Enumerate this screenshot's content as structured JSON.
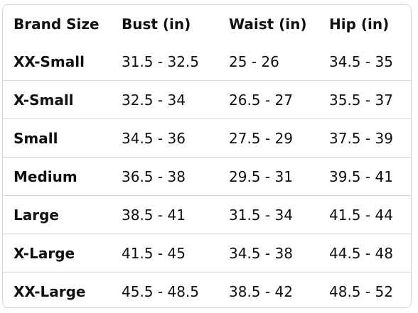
{
  "table": {
    "headers": [
      "Brand Size",
      "Bust (in)",
      "Waist (in)",
      "Hip (in)"
    ],
    "rows": [
      [
        "XX-Small",
        "31.5 - 32.5",
        "25 - 26",
        "34.5 - 35"
      ],
      [
        "X-Small",
        "32.5 - 34",
        "26.5 - 27",
        "35.5 - 37"
      ],
      [
        "Small",
        "34.5 - 36",
        "27.5 - 29",
        "37.5 - 39"
      ],
      [
        "Medium",
        "36.5 - 38",
        "29.5 - 31",
        "39.5 - 41"
      ],
      [
        "Large",
        "38.5 - 41",
        "31.5 - 34",
        "41.5 - 44"
      ],
      [
        "X-Large",
        "41.5 - 45",
        "34.5 - 38",
        "44.5 - 48"
      ],
      [
        "XX-Large",
        "45.5 - 48.5",
        "38.5 - 42",
        "48.5 - 52"
      ]
    ]
  },
  "colors": {
    "border": "#d5d9d9",
    "text": "#0f1111",
    "background": "#ffffff"
  }
}
